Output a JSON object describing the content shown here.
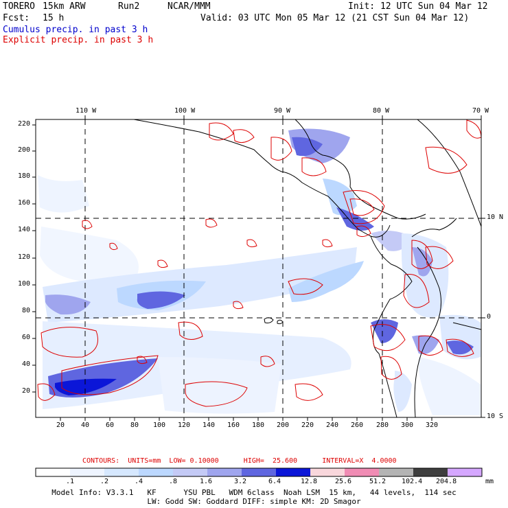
{
  "header": {
    "model": "TORERO",
    "resolution": "15km ARW",
    "run": "Run2",
    "org": "NCAR/MMM",
    "init": "Init: 12 UTC Sun 04 Mar 12",
    "fcst_label": "Fcst:",
    "fcst_value": "15 h",
    "valid": "Valid: 03 UTC Mon 05 Mar 12 (21 CST Sun 04 Mar 12)",
    "legend_cumulus": "Cumulus precip. in past 3 h",
    "legend_explicit": "Explicit precip. in past 3 h"
  },
  "axes": {
    "lon_labels": [
      "110 W",
      "100 W",
      "90 W",
      "80 W",
      "70 W"
    ],
    "lat_labels": [
      "10 N",
      "0",
      "10 S"
    ],
    "y_ticks": [
      "220",
      "200",
      "180",
      "160",
      "140",
      "120",
      "100",
      "80",
      "60",
      "40",
      "20"
    ],
    "x_ticks": [
      "20",
      "40",
      "60",
      "80",
      "100",
      "120",
      "140",
      "160",
      "180",
      "200",
      "220",
      "240",
      "260",
      "280",
      "300",
      "320"
    ]
  },
  "contour_info": "CONTOURS:  UNITS=mm  LOW= 0.10000      HIGH=  25.600      INTERVAL=X  4.0000",
  "colorbar": {
    "labels": [
      ".1",
      ".2",
      ".4",
      ".8",
      "1.6",
      "3.2",
      "6.4",
      "12.8",
      "25.6",
      "51.2",
      "102.4",
      "204.8"
    ],
    "unit": "mm",
    "colors": [
      "#ffffff",
      "#eef4ff",
      "#d6e8ff",
      "#bcd8ff",
      "#c4caf6",
      "#9fa5ee",
      "#5f66e0",
      "#0b16d8",
      "#f9d7dc",
      "#f08cb4",
      "#b4b4b4",
      "#3e3e3e",
      "#d5a7ff"
    ]
  },
  "footer": {
    "line1": "Model Info: V3.3.1   KF      YSU PBL   WDM 6class  Noah LSM  15 km,   44 levels,  114 sec",
    "line2": "LW: Godd SW: Goddard DIFF: simple KM: 2D Smagor"
  }
}
